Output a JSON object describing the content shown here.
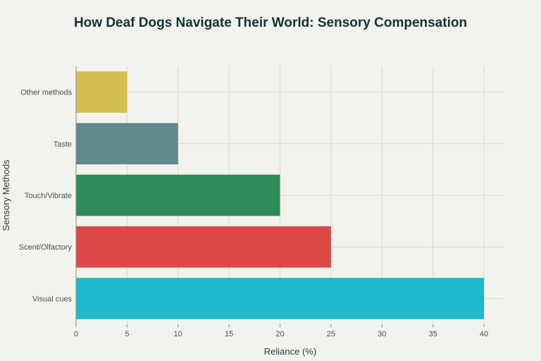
{
  "chart_data": {
    "type": "bar",
    "orientation": "horizontal",
    "title": "How Deaf Dogs Navigate Their World: Sensory Compensation",
    "xlabel": "Reliance (%)",
    "ylabel": "Sensory Methods",
    "categories": [
      "Other methods",
      "Taste",
      "Touch/Vibrate",
      "Scent/Olfactory",
      "Visual cues"
    ],
    "values": [
      5,
      10,
      20,
      25,
      40
    ],
    "colors": [
      "#d4bd4f",
      "#5e8a8e",
      "#2e8b57",
      "#dc4848",
      "#1fb8cd"
    ],
    "xlim": [
      0,
      42
    ],
    "xticks": [
      0,
      5,
      10,
      15,
      20,
      25,
      30,
      35,
      40
    ],
    "grid": true,
    "legend": "none"
  }
}
